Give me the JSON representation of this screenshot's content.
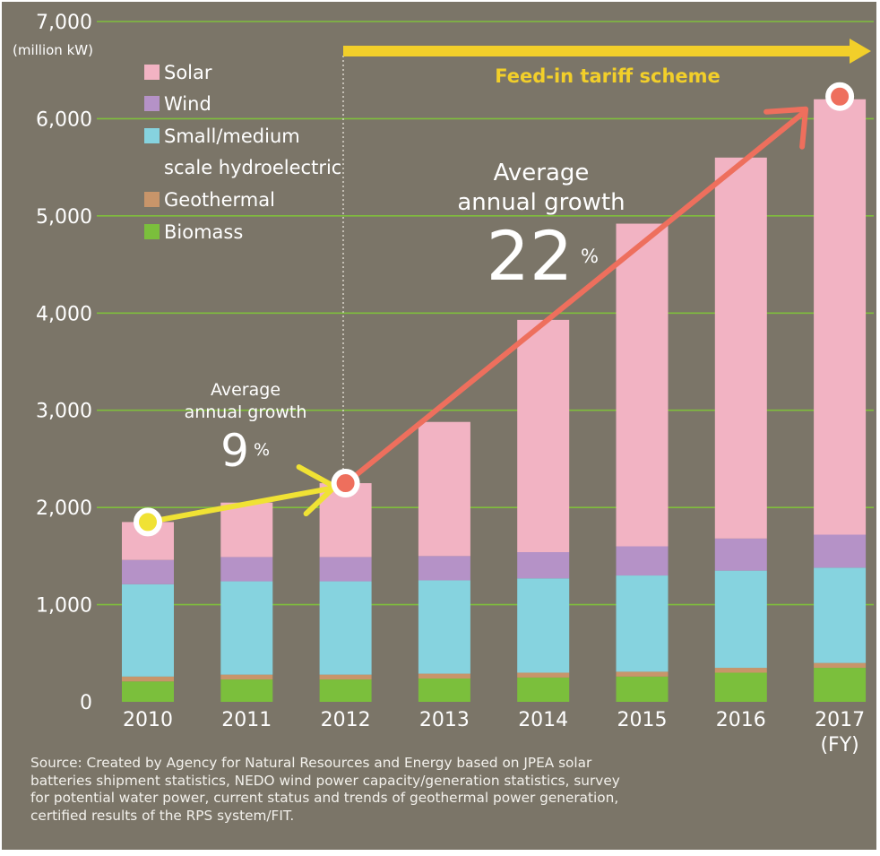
{
  "chart_data": {
    "type": "bar",
    "stacked": true,
    "y_unit_label": "(million kW)",
    "ylim": [
      0,
      7000
    ],
    "yticks": [
      0,
      1000,
      2000,
      3000,
      4000,
      5000,
      6000,
      7000
    ],
    "ytick_labels": [
      "0",
      "1,000",
      "2,000",
      "3,000",
      "4,000",
      "5,000",
      "6,000",
      "7,000"
    ],
    "grid": true,
    "legend_placement": "top-left",
    "categories": [
      "2010",
      "2011",
      "2012",
      "2013",
      "2014",
      "2015",
      "2016",
      "2017"
    ],
    "last_category_suffix": "(FY)",
    "series": [
      {
        "name": "Biomass",
        "color": "#7bbf3c",
        "values": [
          210,
          230,
          230,
          240,
          250,
          260,
          300,
          350
        ]
      },
      {
        "name": "Geothermal",
        "color": "#c8956a",
        "values": [
          50,
          50,
          50,
          50,
          50,
          50,
          50,
          50
        ]
      },
      {
        "name": "Small/medium scale hydroelectric",
        "color": "#86d3df",
        "values": [
          950,
          960,
          960,
          960,
          970,
          990,
          1000,
          980
        ]
      },
      {
        "name": "Wind",
        "color": "#b592c7",
        "values": [
          250,
          250,
          250,
          250,
          270,
          300,
          330,
          340
        ]
      },
      {
        "name": "Solar",
        "color": "#f2b3c3",
        "values": [
          390,
          560,
          760,
          1380,
          2390,
          3320,
          3920,
          4480
        ]
      }
    ],
    "legend_order": [
      "Solar",
      "Wind",
      "Small/medium scale hydroelectric",
      "Geothermal",
      "Biomass"
    ],
    "annotations": {
      "fit_label": "Feed-in tariff scheme",
      "growth1_line1": "Average",
      "growth1_line2": "annual growth",
      "growth1_value": "9",
      "growth2_line1": "Average",
      "growth2_line2": "annual growth",
      "growth2_value": "22",
      "percent_sign": "%"
    }
  },
  "colors": {
    "background": "#7b7568",
    "grid": "#7fbf3c",
    "fit_arrow": "#f2cf2a",
    "growth_arrow_1": "#f0e234",
    "growth_arrow_2": "#ee6f5d"
  },
  "source_text": "Source: Created by Agency for Natural Resources and Energy based on JPEA solar\nbatteries shipment statistics, NEDO wind power capacity/generation statistics, survey\nfor potential water power, current status and trends of geothermal power generation,\ncertified results of the RPS system/FIT."
}
